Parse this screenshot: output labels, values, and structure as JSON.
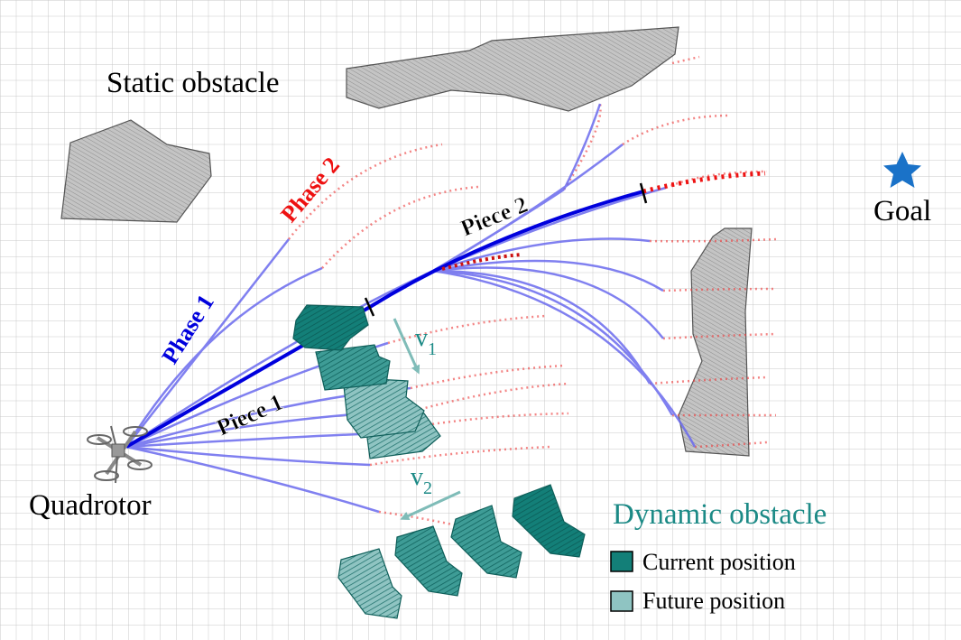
{
  "labels": {
    "static_obstacle": "Static obstacle",
    "goal": "Goal",
    "quadrotor": "Quadrotor",
    "phase1": "Phase 1",
    "phase2": "Phase 2",
    "piece1": "Piece 1",
    "piece2": "Piece 2",
    "v1_base": "v",
    "v1_sub": "1",
    "v2_base": "v",
    "v2_sub": "2",
    "dynamic_obstacle": "Dynamic obstacle"
  },
  "legend": {
    "current": "Current position",
    "future": "Future position"
  },
  "colors": {
    "grid": "#c8c8c8",
    "static_fill": "#c4c4c4",
    "dyn_current": "#137f78",
    "dyn_future": "#8fc4c2",
    "traj_blue": "#0000dd",
    "traj_light": "#7070ee",
    "traj_red": "#ee2222",
    "goal": "#1a72c8",
    "dyn_text": "#1c8a86"
  }
}
